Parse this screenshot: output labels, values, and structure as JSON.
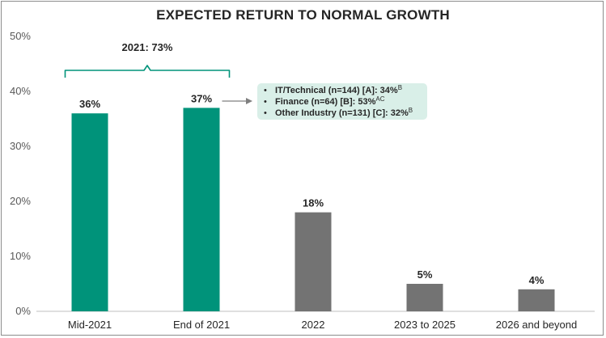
{
  "chart_data": {
    "type": "bar",
    "title": "EXPECTED RETURN TO NORMAL GROWTH",
    "categories": [
      "Mid-2021",
      "End of 2021",
      "2022",
      "2023 to 2025",
      "2026 and beyond"
    ],
    "values": [
      36,
      37,
      18,
      5,
      4
    ],
    "data_labels": [
      "36%",
      "37%",
      "18%",
      "5%",
      "4%"
    ],
    "bar_colors": [
      "#00937a",
      "#00937a",
      "#737373",
      "#737373",
      "#737373"
    ],
    "ylim": [
      0,
      50
    ],
    "yticks": [
      0,
      10,
      20,
      30,
      40,
      50
    ],
    "ytick_labels": [
      "0%",
      "10%",
      "20%",
      "30%",
      "40%",
      "50%"
    ],
    "grid": false,
    "legend": "none",
    "annotations": {
      "brace_label": "2021: 73%",
      "brace_color": "#00937a",
      "callout_items": [
        {
          "text": "IT/Technical (n=144) [A]: 34%",
          "sup": "B"
        },
        {
          "text": "Finance (n=64) [B]: 53%",
          "sup": "AC"
        },
        {
          "text": "Other Industry (n=131) [C]: 32%",
          "sup": "B"
        }
      ],
      "callout_bg": "#d9efe8",
      "bullet_glyph": "•"
    }
  }
}
